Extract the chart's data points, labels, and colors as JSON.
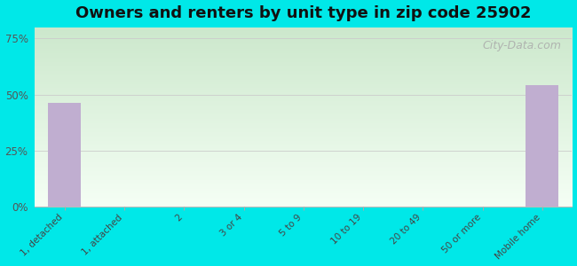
{
  "title": "Owners and renters by unit type in zip code 25902",
  "categories": [
    "1, detached",
    "1, attached",
    "2",
    "3 or 4",
    "5 to 9",
    "10 to 19",
    "20 to 49",
    "50 or more",
    "Mobile home"
  ],
  "values": [
    46.3,
    0,
    0,
    0,
    0,
    0,
    0,
    0,
    54.1
  ],
  "bar_color": "#c0aed0",
  "background_color": "#00e8e8",
  "grad_top_left": "#cce8cc",
  "grad_bottom_right": "#f5fff5",
  "yticks": [
    0,
    25,
    50,
    75
  ],
  "ytick_labels": [
    "0%",
    "25%",
    "50%",
    "75%"
  ],
  "ylim": [
    0,
    80
  ],
  "title_fontsize": 13,
  "watermark": "City-Data.com",
  "watermark_fontsize": 9
}
